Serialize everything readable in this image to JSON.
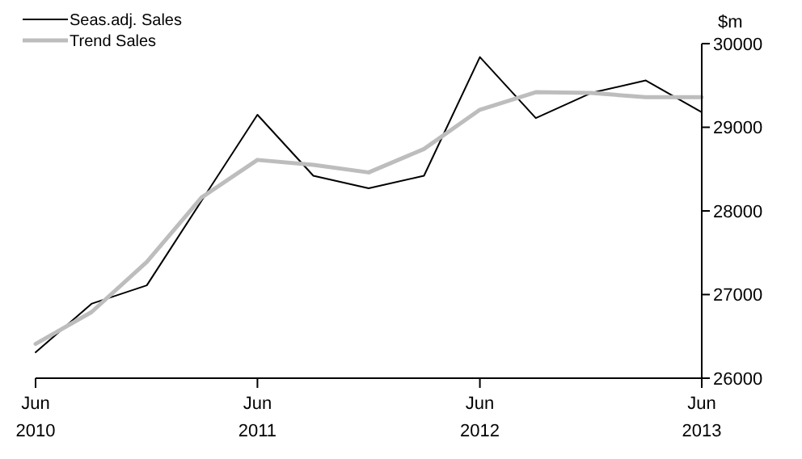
{
  "chart_data": {
    "type": "line",
    "ylabel": "$m",
    "x": [
      "2010-06",
      "2010-09",
      "2010-12",
      "2011-03",
      "2011-06",
      "2011-09",
      "2011-12",
      "2012-03",
      "2012-06",
      "2012-09",
      "2012-12",
      "2013-03",
      "2013-06"
    ],
    "series": [
      {
        "name": "Seas.adj. Sales",
        "color": "#000000",
        "values": [
          26310,
          26890,
          27110,
          28120,
          29150,
          28420,
          28270,
          28420,
          29840,
          29110,
          29410,
          29560,
          29180
        ]
      },
      {
        "name": "Trend Sales",
        "color": "#bdbdbd",
        "values": [
          26410,
          26790,
          27390,
          28160,
          28610,
          28550,
          28460,
          28740,
          29210,
          29420,
          29410,
          29360,
          29360
        ]
      }
    ],
    "xlim": [
      "2010-06",
      "2013-06"
    ],
    "xticks": [
      {
        "value": "2010-06",
        "label": "Jun\n2010"
      },
      {
        "value": "2011-06",
        "label": "Jun\n2011"
      },
      {
        "value": "2012-06",
        "label": "Jun\n2012"
      },
      {
        "value": "2013-06",
        "label": "Jun\n2013"
      }
    ],
    "ylim": [
      26000,
      30000
    ],
    "yticks": [
      26000,
      27000,
      28000,
      29000,
      30000
    ],
    "grid": false,
    "legend": "top left",
    "marker": "none",
    "line_style": "solid"
  }
}
